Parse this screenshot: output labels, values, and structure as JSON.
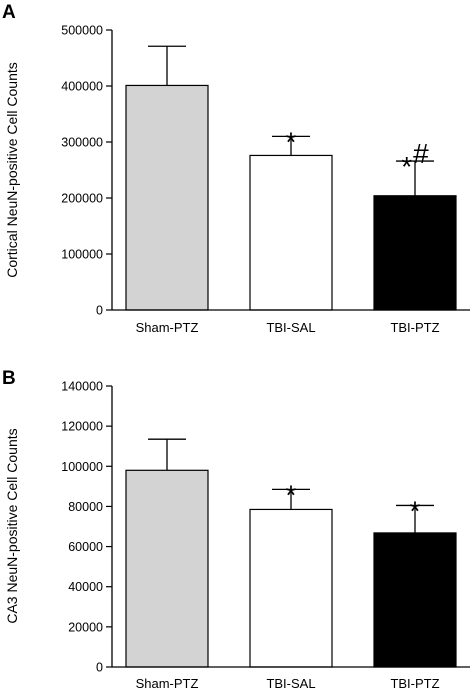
{
  "chart_data": [
    {
      "type": "bar",
      "panel_label": "A",
      "categories": [
        "Sham-PTZ",
        "TBI-SAL",
        "TBI-PTZ"
      ],
      "values": [
        401000,
        276000,
        204000
      ],
      "error_upper": [
        70000,
        34000,
        62000
      ],
      "significance": [
        "",
        "*",
        "*#"
      ],
      "bar_colors": [
        "#d3d3d3",
        "#ffffff",
        "#000000"
      ],
      "title": "",
      "xlabel": "",
      "ylabel": "Cortical NeuN-positive Cell Counts",
      "ylim": [
        0,
        500000
      ],
      "yticks": [
        0,
        100000,
        200000,
        300000,
        400000,
        500000
      ],
      "ytick_labels": [
        "0",
        "100000",
        "200000",
        "300000",
        "400000",
        "500000"
      ],
      "grid": false
    },
    {
      "type": "bar",
      "panel_label": "B",
      "categories": [
        "Sham-PTZ",
        "TBI-SAL",
        "TBI-PTZ"
      ],
      "values": [
        98000,
        78500,
        66800
      ],
      "error_upper": [
        15500,
        10000,
        13700
      ],
      "significance": [
        "",
        "*",
        "*"
      ],
      "bar_colors": [
        "#d3d3d3",
        "#ffffff",
        "#000000"
      ],
      "title": "",
      "xlabel": "",
      "ylabel": "CA3 NeuN-positive Cell Counts",
      "ylim": [
        0,
        140000
      ],
      "yticks": [
        0,
        20000,
        40000,
        60000,
        80000,
        100000,
        120000,
        140000
      ],
      "ytick_labels": [
        "0",
        "20000",
        "40000",
        "60000",
        "80000",
        "100000",
        "120000",
        "140000"
      ],
      "grid": false
    }
  ]
}
